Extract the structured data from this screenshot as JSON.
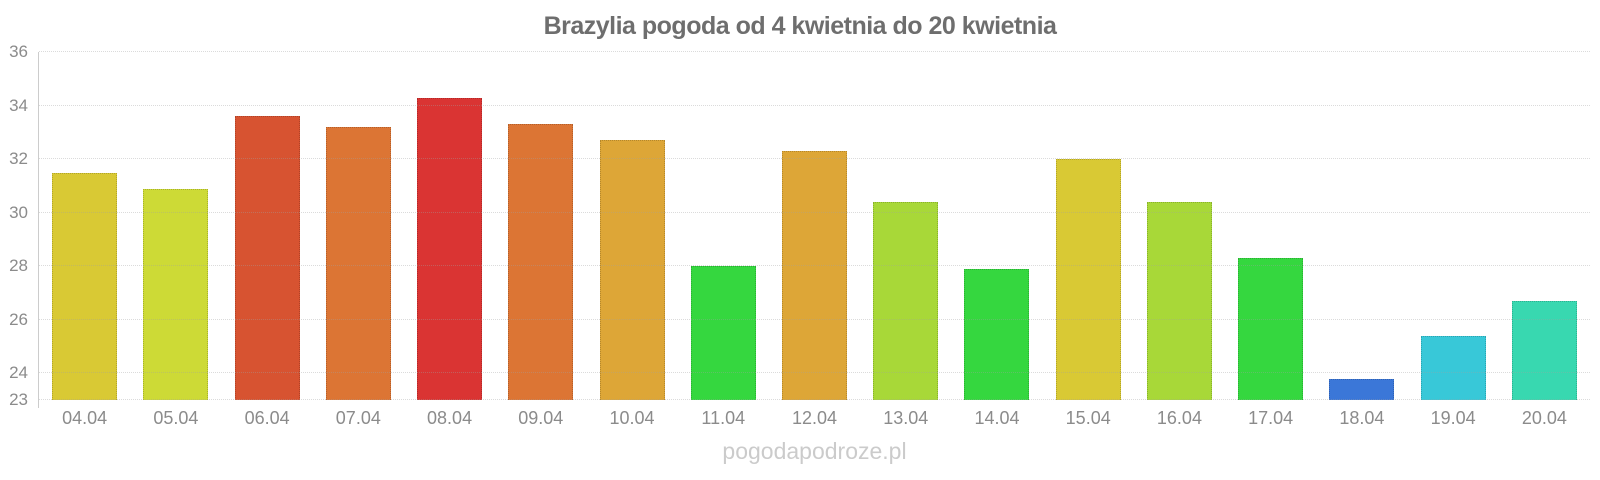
{
  "title": "Brazylia pogoda od 4 kwietnia do 20 kwietnia",
  "watermark": "pogodapodroze.pl",
  "colors": {
    "title_text": "#6e6e6e",
    "axis_label": "#8b8b8b",
    "axis_line": "#cccccc",
    "watermark_text": "#cbcbcb"
  },
  "chart_data": {
    "type": "bar",
    "title": "Brazylia pogoda od 4 kwietnia do 20 kwietnia",
    "xlabel": "",
    "ylabel": "",
    "ylim": [
      23,
      36
    ],
    "yticks": [
      23,
      24,
      26,
      28,
      30,
      32,
      34,
      36
    ],
    "grid": true,
    "legend": "none",
    "categories": [
      "04.04",
      "05.04",
      "06.04",
      "07.04",
      "08.04",
      "09.04",
      "10.04",
      "11.04",
      "12.04",
      "13.04",
      "14.04",
      "15.04",
      "16.04",
      "17.04",
      "18.04",
      "19.04",
      "20.04"
    ],
    "values": [
      31.5,
      30.9,
      33.6,
      33.2,
      34.3,
      33.3,
      32.7,
      28.0,
      32.3,
      30.4,
      27.9,
      32.0,
      30.4,
      28.3,
      23.8,
      25.4,
      26.7
    ],
    "bar_colors": [
      "#d9c934",
      "#cdda36",
      "#d75331",
      "#dc7534",
      "#da3433",
      "#dc7534",
      "#dda637",
      "#35d73f",
      "#dda637",
      "#a8d838",
      "#35d73f",
      "#d9c934",
      "#a8d838",
      "#35d73f",
      "#3b77d8",
      "#38c8d8",
      "#38d8b0"
    ]
  }
}
